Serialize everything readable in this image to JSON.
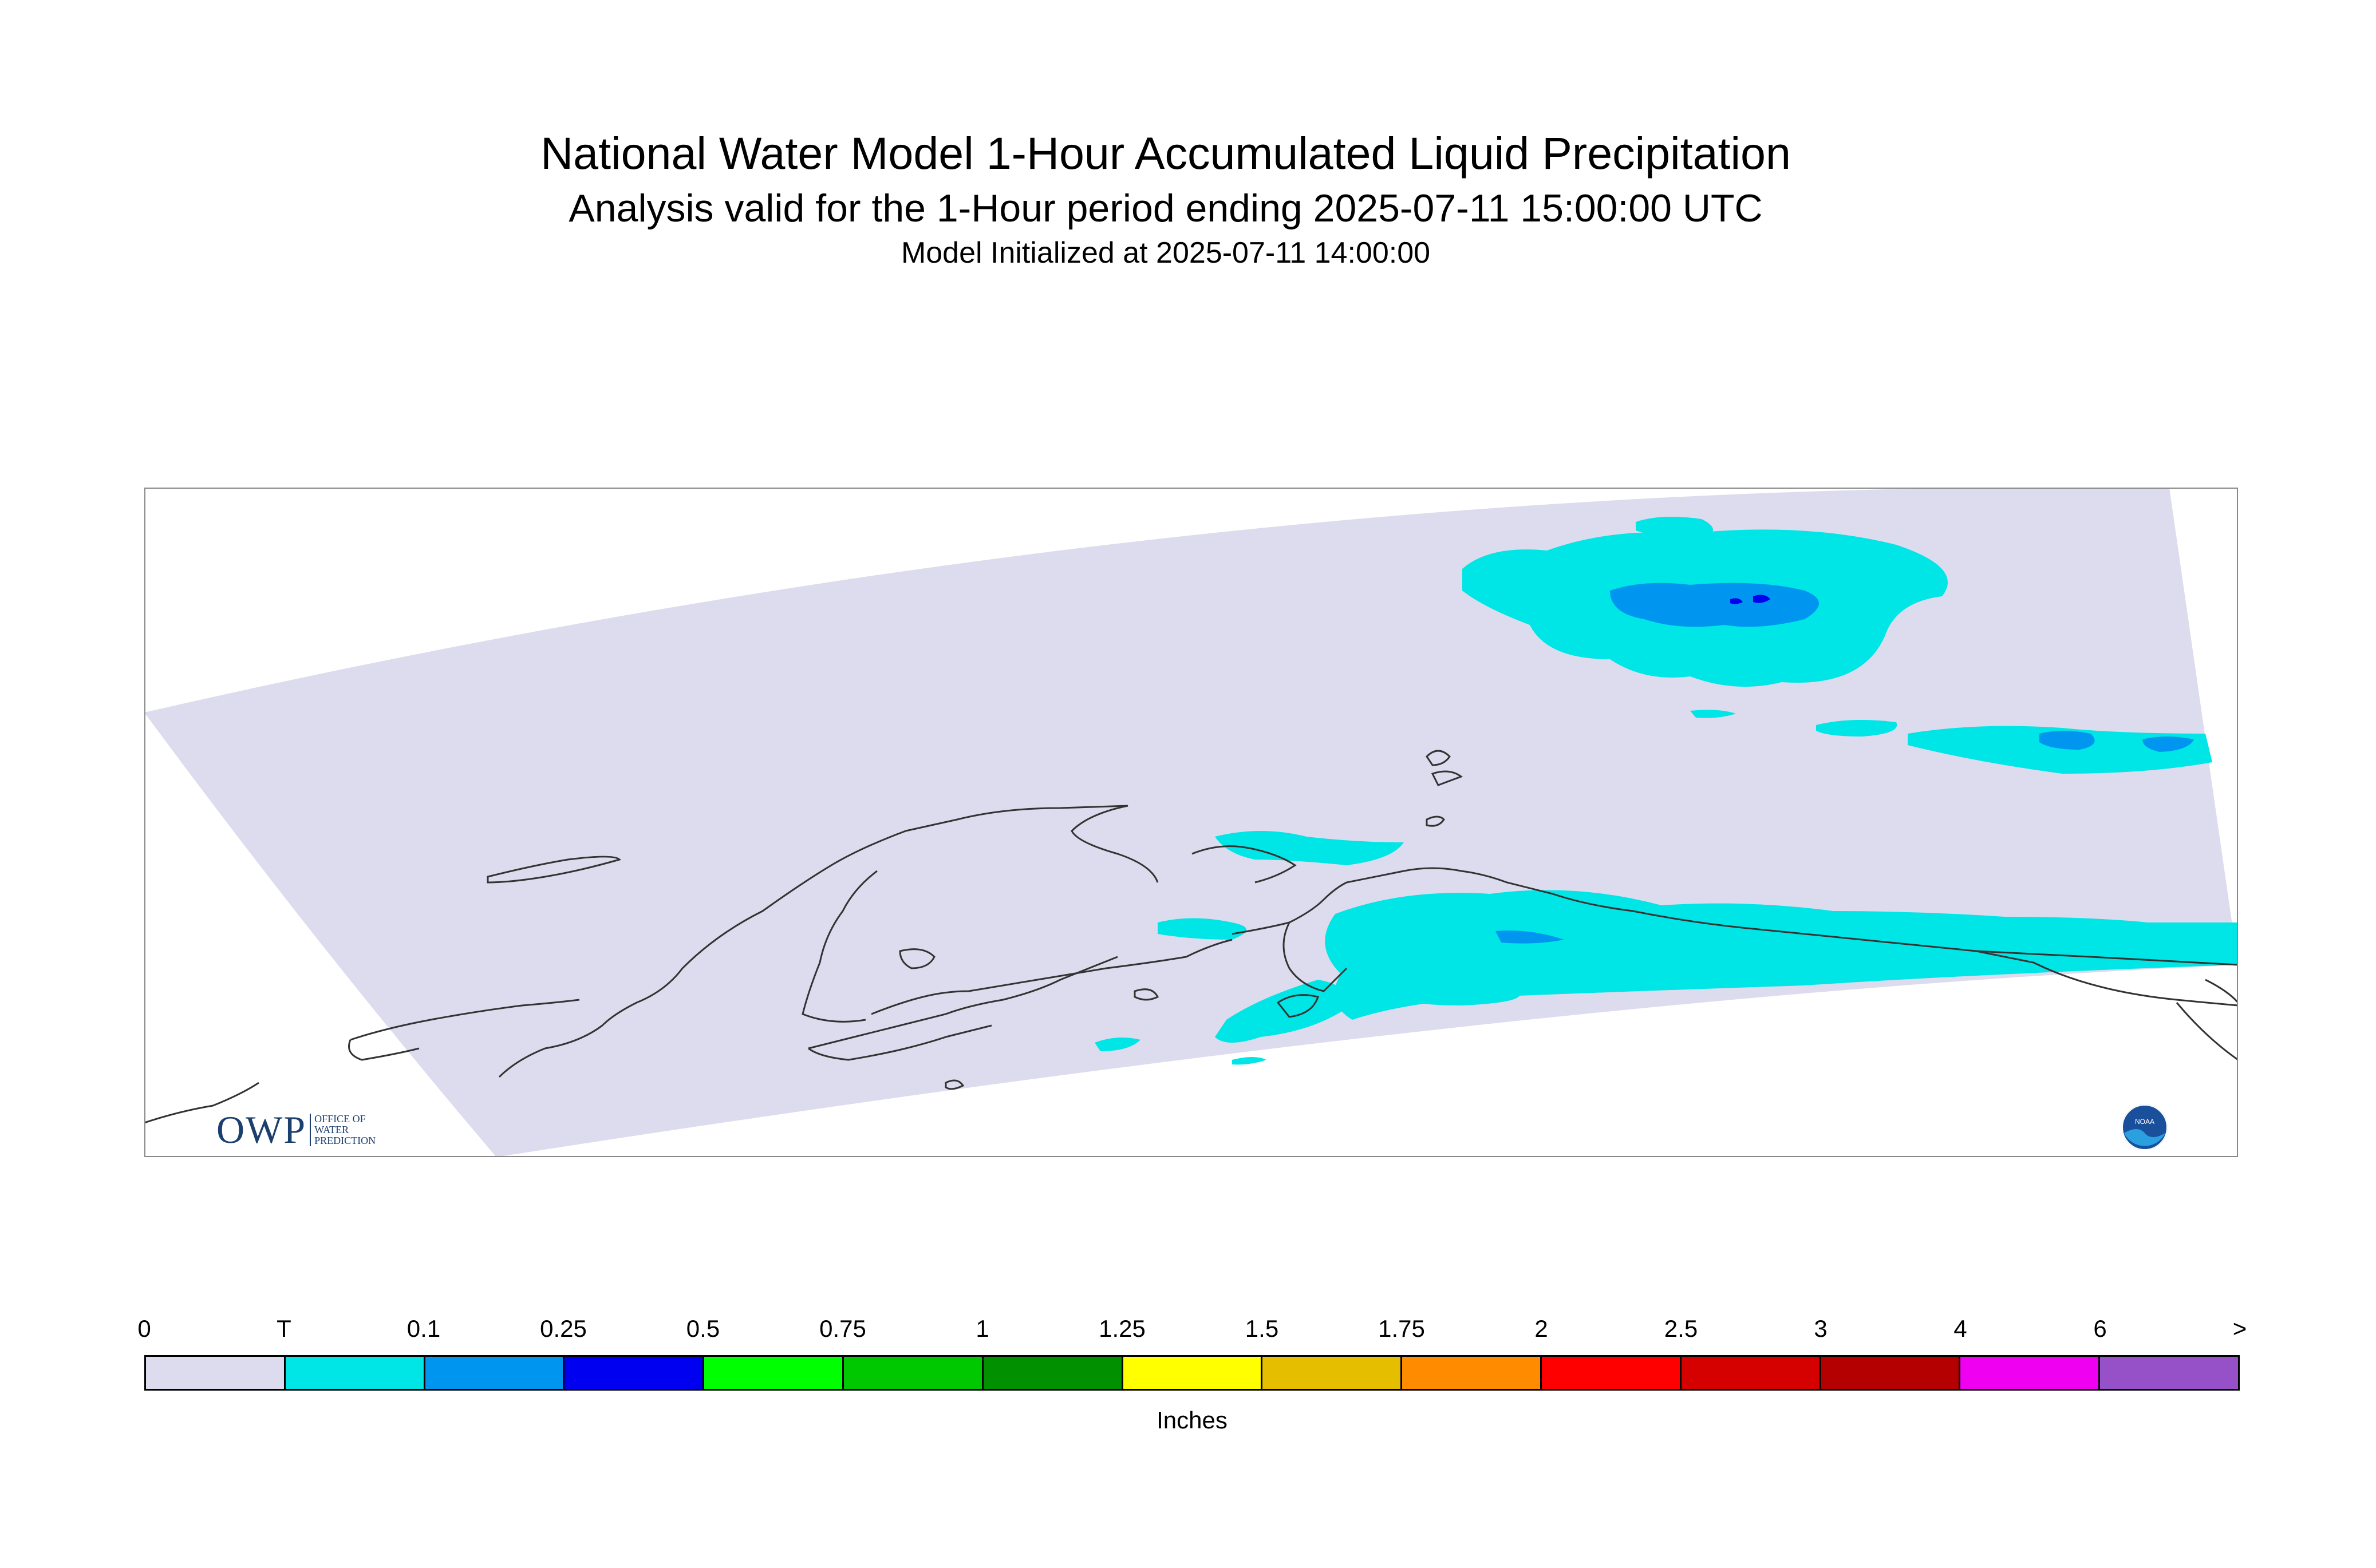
{
  "header": {
    "title": "National Water Model 1-Hour Accumulated Liquid Precipitation",
    "subtitle": "Analysis valid for the 1-Hour period ending 2025-07-11 15:00:00 UTC",
    "init_line": "Model Initialized at 2025-07-11 14:00:00"
  },
  "map": {
    "domain_color": "#dcdcee",
    "coastline_color": "#333333",
    "frame_color": "#888888",
    "region": "Alaska"
  },
  "legend": {
    "tick_labels": [
      "0",
      "T",
      "0.1",
      "0.25",
      "0.5",
      "0.75",
      "1",
      "1.25",
      "1.5",
      "1.75",
      "2",
      "2.5",
      "3",
      "4",
      "6",
      ">"
    ],
    "colors": [
      "#dcdcee",
      "#00e5e5",
      "#0096f0",
      "#0000f0",
      "#00ff00",
      "#00c800",
      "#009000",
      "#ffff00",
      "#e6be00",
      "#ff8c00",
      "#ff0000",
      "#d50000",
      "#b40000",
      "#f000f0",
      "#9650c8"
    ],
    "units": "Inches"
  },
  "logos": {
    "owp": {
      "mark": "OWP",
      "lines": [
        "OFFICE OF",
        "WATER",
        "PREDICTION"
      ],
      "color": "#1b3f6e"
    },
    "noaa": {
      "text": "NOAA",
      "colors": [
        "#1a4f9c",
        "#2aa0e0"
      ]
    }
  }
}
